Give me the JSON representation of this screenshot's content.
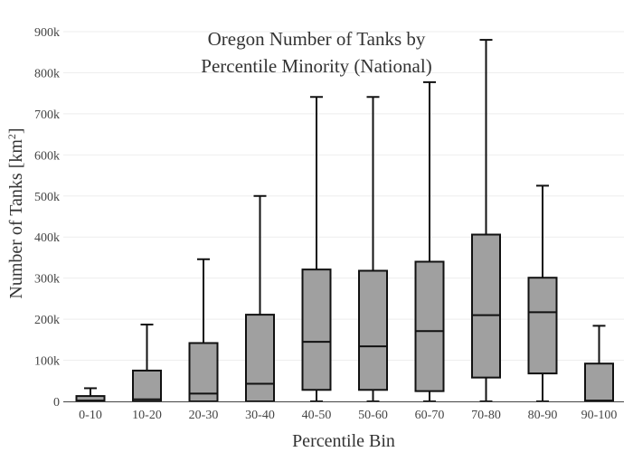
{
  "chart_data": {
    "type": "box",
    "title_lines": [
      "Oregon Number of Tanks by",
      "Percentile Minority (National)"
    ],
    "xlabel": "Percentile Bin",
    "ylabel_main": "Number of Tanks  [km",
    "ylabel_sup": "2",
    "ylabel_end": "]",
    "ylim": [
      0,
      900000
    ],
    "yticks": [
      {
        "value": 0,
        "label": "0"
      },
      {
        "value": 100000,
        "label": "100k"
      },
      {
        "value": 200000,
        "label": "200k"
      },
      {
        "value": 300000,
        "label": "300k"
      },
      {
        "value": 400000,
        "label": "400k"
      },
      {
        "value": 500000,
        "label": "500k"
      },
      {
        "value": 600000,
        "label": "600k"
      },
      {
        "value": 700000,
        "label": "700k"
      },
      {
        "value": 800000,
        "label": "800k"
      },
      {
        "value": 900000,
        "label": "900k"
      }
    ],
    "grid": true,
    "legend": "none",
    "box_color": "#a0a0a0",
    "categories": [
      "0-10",
      "10-20",
      "20-30",
      "30-40",
      "40-50",
      "50-60",
      "60-70",
      "70-80",
      "80-90",
      "90-100"
    ],
    "boxes": [
      {
        "min": 0,
        "q1": 0,
        "median": 2000,
        "q3": 13000,
        "max": 32000
      },
      {
        "min": 0,
        "q1": 0,
        "median": 5000,
        "q3": 75000,
        "max": 187000
      },
      {
        "min": 0,
        "q1": 0,
        "median": 19000,
        "q3": 142000,
        "max": 346000
      },
      {
        "min": 0,
        "q1": 0,
        "median": 43000,
        "q3": 211000,
        "max": 500000
      },
      {
        "min": 0,
        "q1": 28000,
        "median": 145000,
        "q3": 321000,
        "max": 741000
      },
      {
        "min": 0,
        "q1": 28000,
        "median": 134000,
        "q3": 318000,
        "max": 741000
      },
      {
        "min": 0,
        "q1": 25000,
        "median": 171000,
        "q3": 340000,
        "max": 777000
      },
      {
        "min": 0,
        "q1": 58000,
        "median": 210000,
        "q3": 406000,
        "max": 880000
      },
      {
        "min": 0,
        "q1": 68000,
        "median": 217000,
        "q3": 301000,
        "max": 525000
      },
      {
        "min": 0,
        "q1": 0,
        "median": 2000,
        "q3": 92000,
        "max": 184000
      }
    ]
  }
}
